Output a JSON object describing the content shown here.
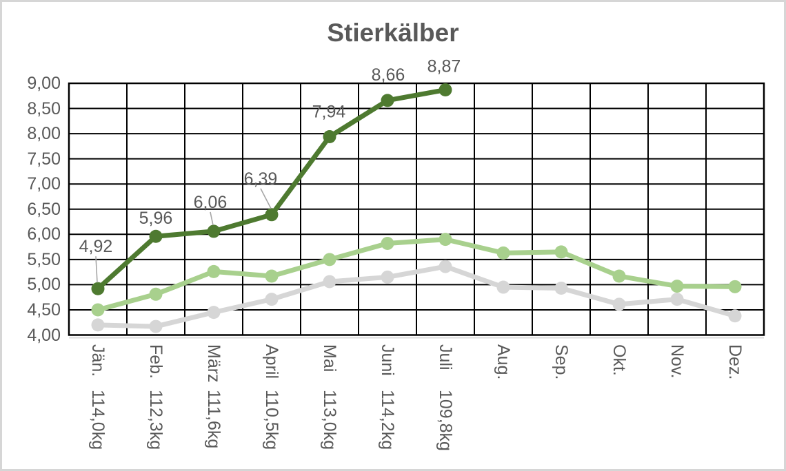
{
  "figure": {
    "background": "#ffffff",
    "border_color": "#d6d6d6"
  },
  "chart_data": {
    "type": "line",
    "title": "Stierkälber",
    "title_color": "#595959",
    "categories": [
      "Jän.",
      "Feb.",
      "März",
      "April",
      "Mai",
      "Juni",
      "Juli",
      "Aug.",
      "Sep.",
      "Okt.",
      "Nov.",
      "Dez."
    ],
    "category_weights": [
      "114,0kg",
      "112,3kg",
      "111,6kg",
      "110,5kg",
      "113,0kg",
      "114,2kg",
      "109,8kg",
      null,
      null,
      null,
      null,
      null
    ],
    "xlabel": "",
    "ylabel": "",
    "ylim": [
      4.0,
      9.0
    ],
    "ytick_step": 0.5,
    "ytick_labels": [
      "9,00",
      "8,50",
      "8,00",
      "7,50",
      "7,00",
      "6,50",
      "6,00",
      "5,50",
      "5,00",
      "4,50",
      "4,00"
    ],
    "grid": true,
    "grid_color": "#000000",
    "axis_text_color": "#595959",
    "leader_color": "#a6a6a6",
    "legend": "none",
    "series": [
      {
        "name": "gray-series",
        "color": "#d6d6d6",
        "values": [
          4.2,
          4.17,
          4.45,
          4.71,
          5.06,
          5.15,
          5.36,
          4.95,
          4.93,
          4.61,
          4.71,
          4.38
        ]
      },
      {
        "name": "light-green-series",
        "color": "#a8d08d",
        "values": [
          4.5,
          4.81,
          5.26,
          5.17,
          5.5,
          5.82,
          5.9,
          5.63,
          5.65,
          5.17,
          4.97,
          4.96
        ]
      },
      {
        "name": "dark-green-series",
        "color": "#4e7a30",
        "values": [
          4.92,
          5.96,
          6.06,
          6.39,
          7.94,
          8.66,
          8.87,
          null,
          null,
          null,
          null,
          null
        ],
        "data_labels": [
          {
            "text": "4,92",
            "dx": -3,
            "dy": -62,
            "leader": true
          },
          {
            "text": "5,96",
            "dx": 0,
            "dy": -27,
            "leader": false
          },
          {
            "text": "6,06",
            "dx": -5,
            "dy": -43,
            "leader": true
          },
          {
            "text": "6,39",
            "dx": -16,
            "dy": -53,
            "leader": true
          },
          {
            "text": "7,94",
            "dx": -1,
            "dy": -37,
            "leader": false
          },
          {
            "text": "8,66",
            "dx": 1,
            "dy": -38,
            "leader": false
          },
          {
            "text": "8,87",
            "dx": -2,
            "dy": -35,
            "leader": false
          }
        ]
      }
    ]
  }
}
